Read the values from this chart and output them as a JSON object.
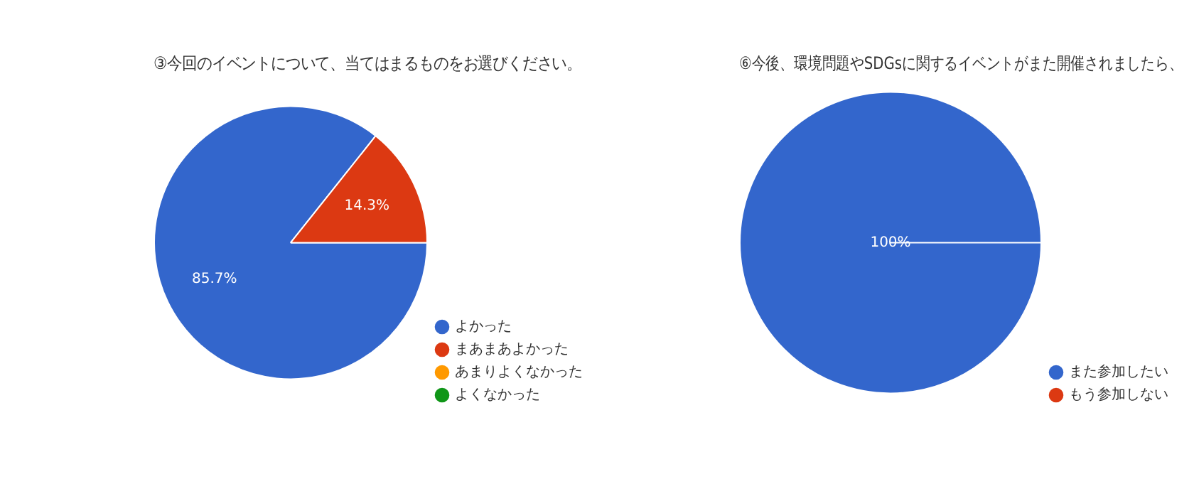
{
  "chart_data": [
    {
      "type": "pie",
      "title": "③今回のイベントについて、当てはまるものをお選びください。",
      "categories": [
        "よかった",
        "まあまあよかった",
        "あまりよくなかった",
        "よくなかった"
      ],
      "values": [
        85.7,
        14.3,
        0,
        0
      ],
      "colors": [
        "#3366cc",
        "#dc3912",
        "#ff9900",
        "#109618"
      ],
      "value_labels": [
        "85.7%",
        "14.3%",
        null,
        null
      ],
      "legend": "bottom right"
    },
    {
      "type": "pie",
      "title": "⑥今後、環境問題やSDGsに関するイベントがまた開催されましたら、",
      "categories": [
        "また参加したい",
        "もう参加しない"
      ],
      "values": [
        100,
        0
      ],
      "colors": [
        "#3366cc",
        "#dc3912"
      ],
      "value_labels": [
        "100%",
        null
      ],
      "legend": "bottom right"
    }
  ]
}
